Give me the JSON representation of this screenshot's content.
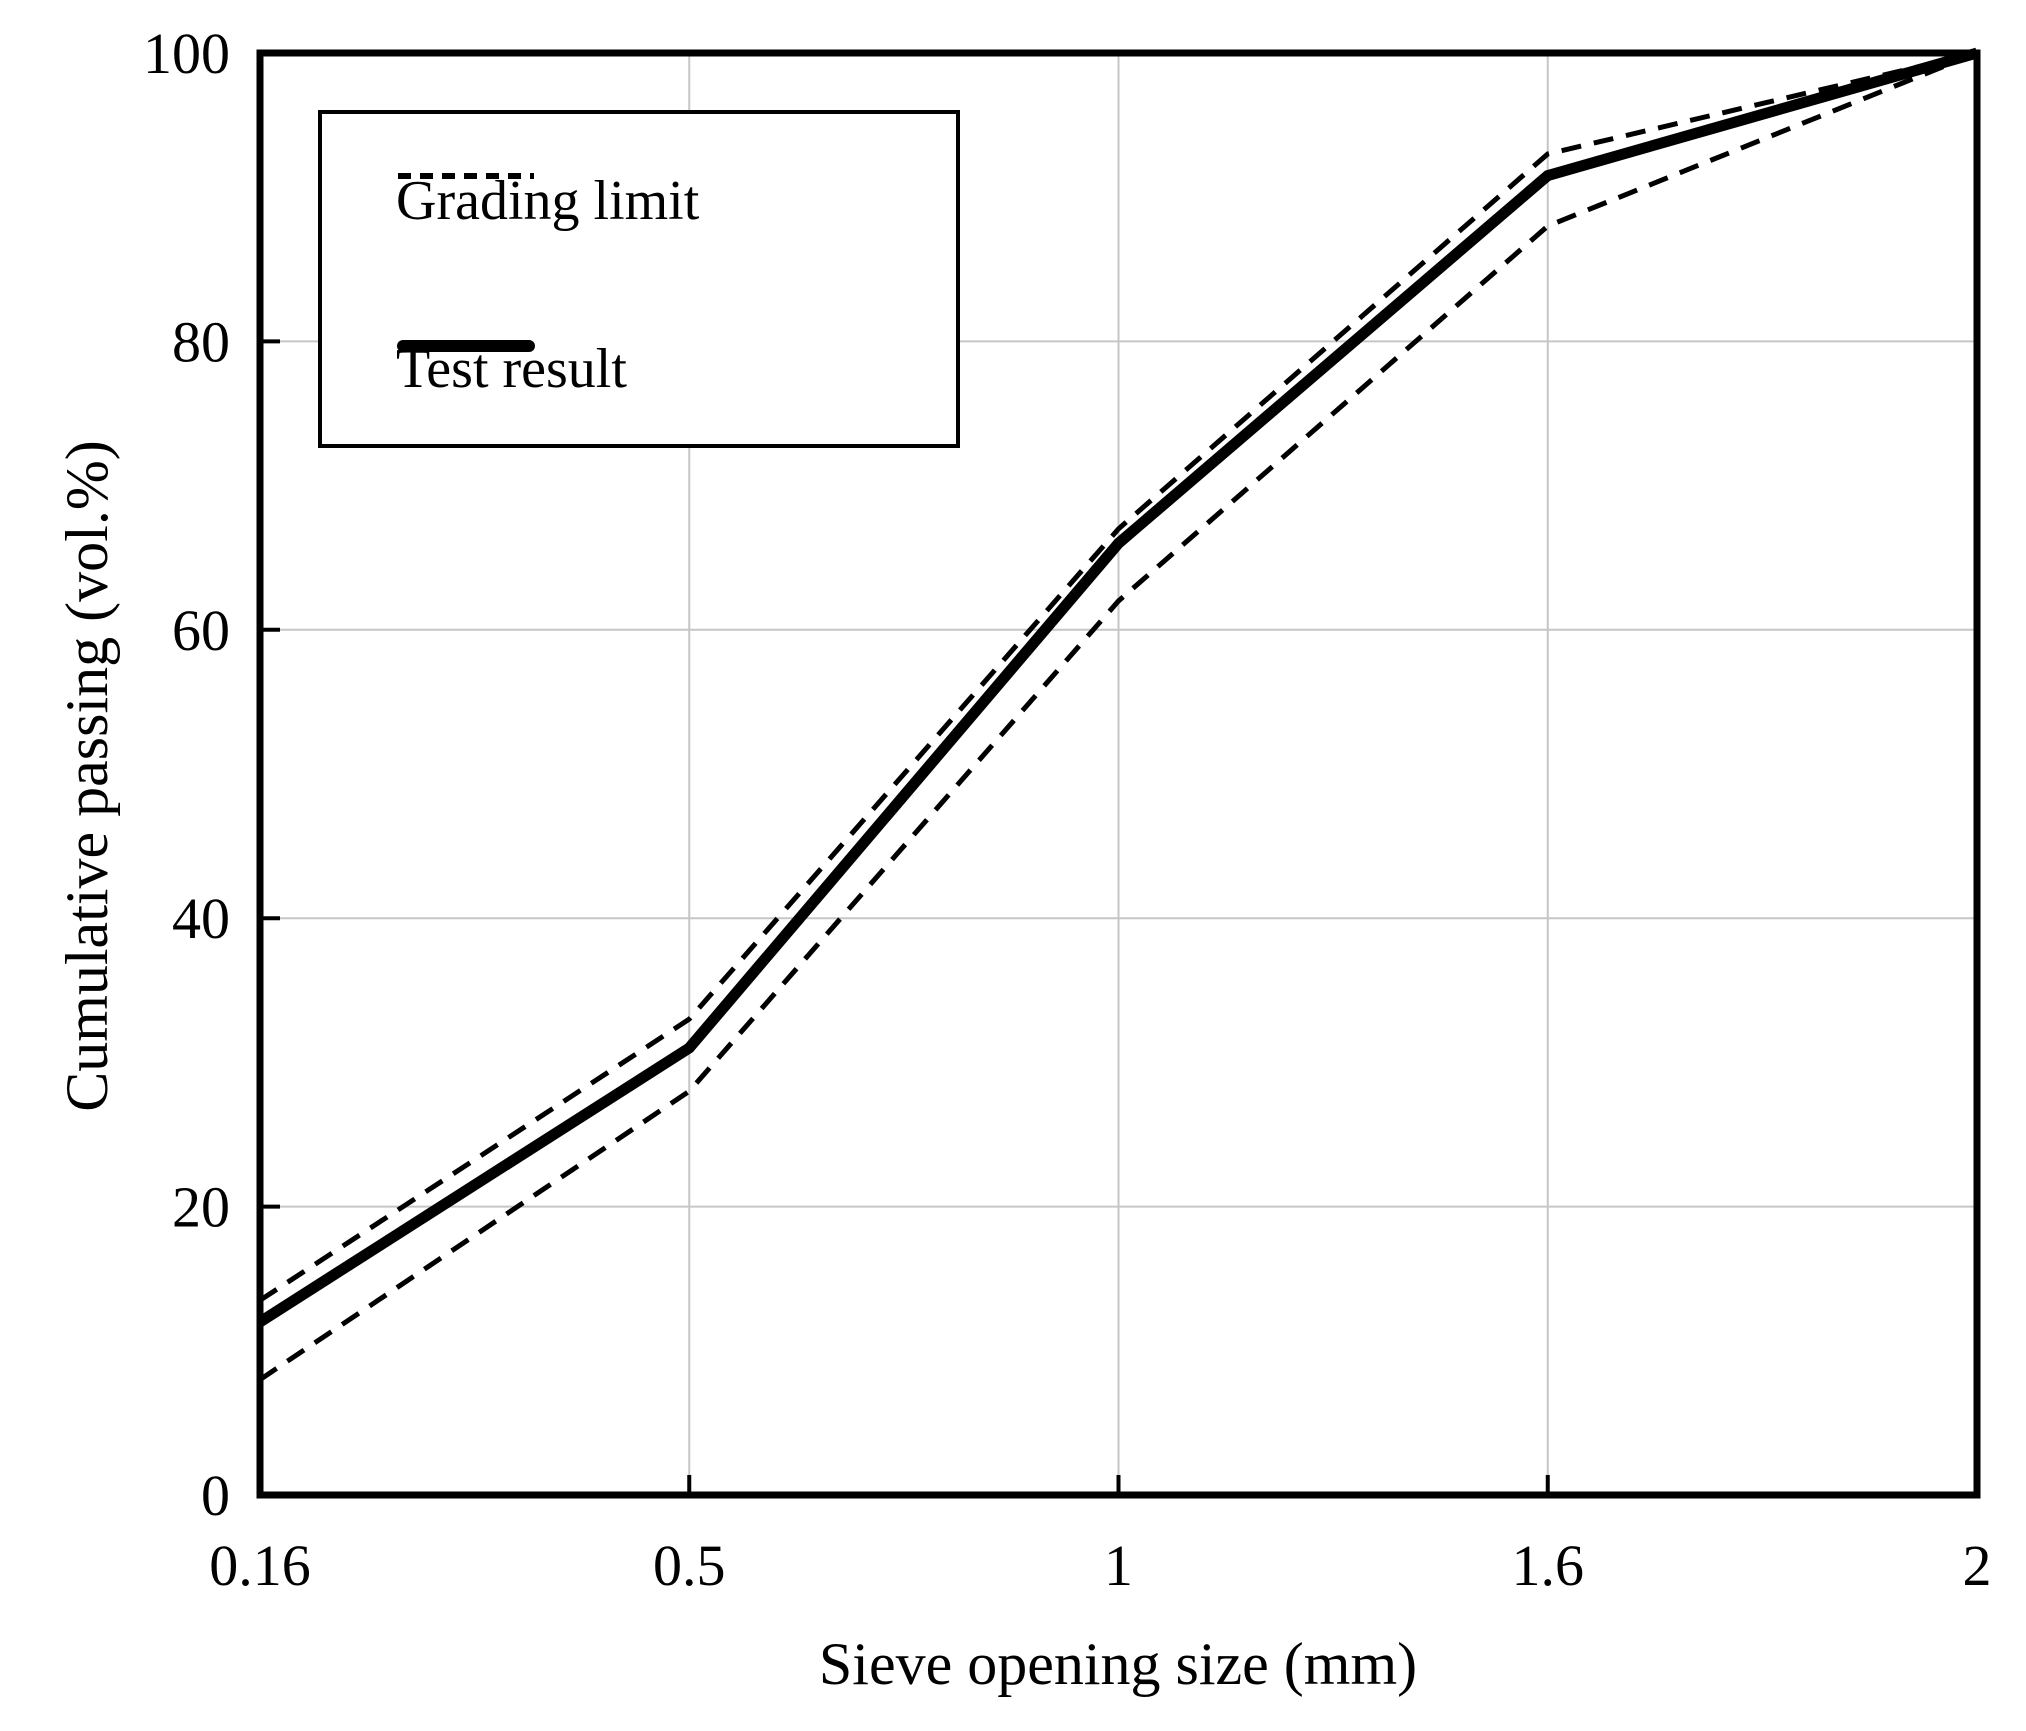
{
  "chart_data": {
    "type": "line",
    "title": "",
    "xlabel": "Sieve opening size (mm)",
    "ylabel": "Cumulative passing (vol.%)",
    "x_categories": [
      "0.16",
      "0.5",
      "1",
      "1.6",
      "2"
    ],
    "x_axis_type": "category-equally-spaced",
    "ylim": [
      0,
      100
    ],
    "yticks": [
      0,
      20,
      40,
      60,
      80,
      100
    ],
    "grid": true,
    "grid_color": "#c6c6c6",
    "line_color": "#000000",
    "background_color": "#ffffff",
    "legend_position": "top-left-inside",
    "series": [
      {
        "name": "Grading limit (upper)",
        "style": "dashed",
        "values": [
          13.5,
          33,
          67,
          93,
          100
        ]
      },
      {
        "name": "Test result",
        "style": "solid-thick",
        "values": [
          12,
          31,
          66,
          91.5,
          100
        ]
      },
      {
        "name": "Grading limit (lower)",
        "style": "dashed",
        "values": [
          8,
          28,
          62,
          88,
          100
        ]
      }
    ],
    "legend_entries": [
      {
        "label": "Grading limit",
        "style": "dashed"
      },
      {
        "label": "Test result",
        "style": "solid"
      }
    ]
  }
}
